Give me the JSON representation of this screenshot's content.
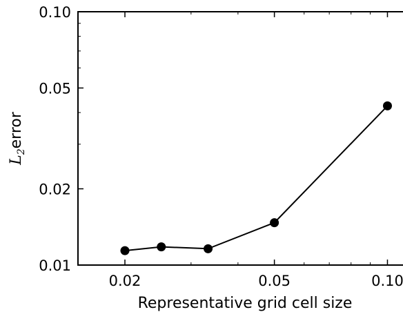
{
  "chart_data": {
    "type": "line",
    "xlabel": "Representative grid cell size",
    "ylabel": {
      "symbol": "L",
      "subscript": "2",
      "text": "error"
    },
    "x_scale": "log",
    "y_scale": "log",
    "xlim": [
      0.015,
      0.11
    ],
    "ylim": [
      0.01,
      0.1
    ],
    "x_ticks": [
      {
        "value": 0.02,
        "label": "0.02"
      },
      {
        "value": 0.05,
        "label": "0.05"
      },
      {
        "value": 0.1,
        "label": "0.10"
      }
    ],
    "y_ticks": [
      {
        "value": 0.01,
        "label": "0.01"
      },
      {
        "value": 0.02,
        "label": "0.02"
      },
      {
        "value": 0.05,
        "label": "0.05"
      },
      {
        "value": 0.1,
        "label": "0.10"
      }
    ],
    "grid": false,
    "series": [
      {
        "color": "#000000",
        "marker": "circle",
        "x": [
          0.02,
          0.025,
          0.0333,
          0.05,
          0.1
        ],
        "y": [
          0.0114,
          0.0118,
          0.0116,
          0.0147,
          0.0425
        ]
      }
    ]
  }
}
